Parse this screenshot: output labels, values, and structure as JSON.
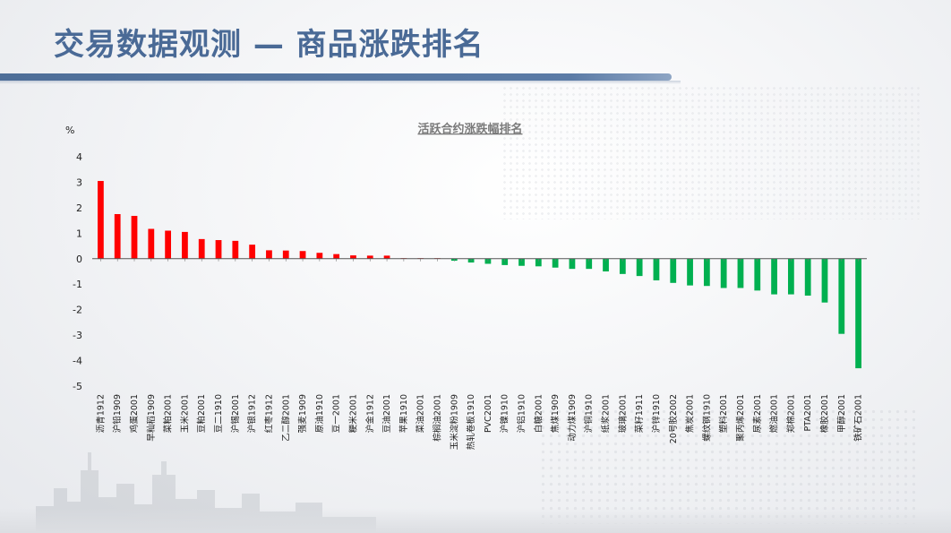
{
  "slide": {
    "title": "交易数据观测 — 商品涨跌排名"
  },
  "chart_data": {
    "type": "bar",
    "title": "活跃合约涨跌幅排名",
    "ylabel": "%",
    "ylim": [
      -5,
      4
    ],
    "yticks": [
      4,
      3,
      2,
      1,
      0,
      -1,
      -2,
      -3,
      -4,
      -5
    ],
    "grid": false,
    "colors": {
      "positive": "#ff0000",
      "negative": "#00b050"
    },
    "categories": [
      "沥青1912",
      "沪铅1909",
      "鸡蛋2001",
      "早籼稻1909",
      "菜粕2001",
      "玉米2001",
      "豆粕2001",
      "豆二1910",
      "沪锡2001",
      "沪银1912",
      "红枣1912",
      "乙二醇2001",
      "强麦1909",
      "原油1910",
      "豆一2001",
      "粳米2001",
      "沪金1912",
      "豆油2001",
      "苹果1910",
      "菜油2001",
      "棕榈油2001",
      "玉米淀粉1909",
      "热轧卷板1910",
      "PVC2001",
      "沪镍1910",
      "沪铝1910",
      "白糖2001",
      "焦煤1909",
      "动力煤1909",
      "沪铜1910",
      "纸浆2001",
      "玻璃2001",
      "菜籽1911",
      "沪锌1910",
      "20号胶2002",
      "焦炭2001",
      "螺纹钢1910",
      "塑料2001",
      "聚丙烯2001",
      "尿素2001",
      "燃油2001",
      "郑棉2001",
      "PTA2001",
      "橡胶2001",
      "甲醇2001",
      "铁矿石2001"
    ],
    "values": [
      3.05,
      1.75,
      1.68,
      1.17,
      1.1,
      1.05,
      0.77,
      0.73,
      0.7,
      0.55,
      0.33,
      0.32,
      0.3,
      0.23,
      0.18,
      0.13,
      0.12,
      0.12,
      0.02,
      0.02,
      0.02,
      -0.08,
      -0.15,
      -0.2,
      -0.25,
      -0.28,
      -0.3,
      -0.35,
      -0.4,
      -0.4,
      -0.5,
      -0.6,
      -0.68,
      -0.85,
      -0.95,
      -1.05,
      -1.07,
      -1.15,
      -1.15,
      -1.25,
      -1.4,
      -1.4,
      -1.45,
      -1.72,
      -2.95,
      -4.3
    ]
  }
}
